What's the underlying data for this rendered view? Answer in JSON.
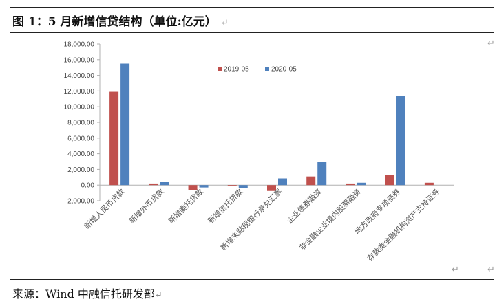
{
  "page": {
    "title": "图 1：5 月新增信贷结构（单位:亿元）",
    "source": "来源：Wind 中融信托研发部",
    "return_mark": "↵"
  },
  "chart_data": {
    "type": "bar",
    "title": "",
    "xlabel": "",
    "ylabel": "",
    "ylim": [
      -2000,
      18000
    ],
    "yticks": [
      -2000,
      0,
      2000,
      4000,
      6000,
      8000,
      10000,
      12000,
      14000,
      16000,
      18000
    ],
    "ytick_labels": [
      "-2,000.00",
      "0.00",
      "2,000.00",
      "4,000.00",
      "6,000.00",
      "8,000.00",
      "10,000.00",
      "12,000.00",
      "14,000.00",
      "16,000.00",
      "18,000.00"
    ],
    "grid": false,
    "legend_position": "top",
    "categories": [
      "新增人民币贷款",
      "新增外币贷款",
      "新增委托贷款",
      "新增信托贷款",
      "新增未贴现银行承兑汇票",
      "企业债券融资",
      "非金融企业境内股票融资",
      "地方政府专项债券",
      "存款类金融机构资产支持证券"
    ],
    "series": [
      {
        "name": "2019-05",
        "color": "#C0504D",
        "values": [
          11900,
          200,
          -650,
          -10,
          -750,
          1100,
          200,
          1250,
          300
        ]
      },
      {
        "name": "2020-05",
        "color": "#4F81BD",
        "values": [
          15500,
          400,
          -300,
          -350,
          850,
          3000,
          300,
          11400,
          0
        ]
      }
    ]
  }
}
